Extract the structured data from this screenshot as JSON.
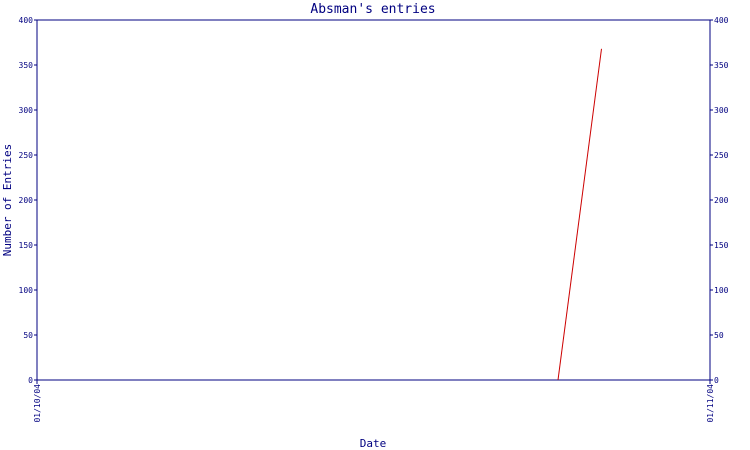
{
  "chart_data": {
    "type": "line",
    "title": "Absman's entries",
    "xlabel": "Date",
    "ylabel": "Number of Entries",
    "x_tick_labels": [
      "01/10/04",
      "01/11/04"
    ],
    "y_ticks": [
      0,
      50,
      100,
      150,
      200,
      250,
      300,
      350,
      400
    ],
    "ylim": [
      0,
      400
    ],
    "y_axis_right": true,
    "grid": false,
    "legend": "none",
    "series": [
      {
        "x": [
          "2004-10-25",
          "2004-10-27"
        ],
        "values": [
          0,
          368
        ]
      }
    ],
    "xlim": [
      "2004-10-01",
      "2004-11-01"
    ]
  },
  "colors": {
    "axis": "#000080",
    "text": "#000080",
    "series": "#cc0000",
    "background": "#ffffff"
  }
}
